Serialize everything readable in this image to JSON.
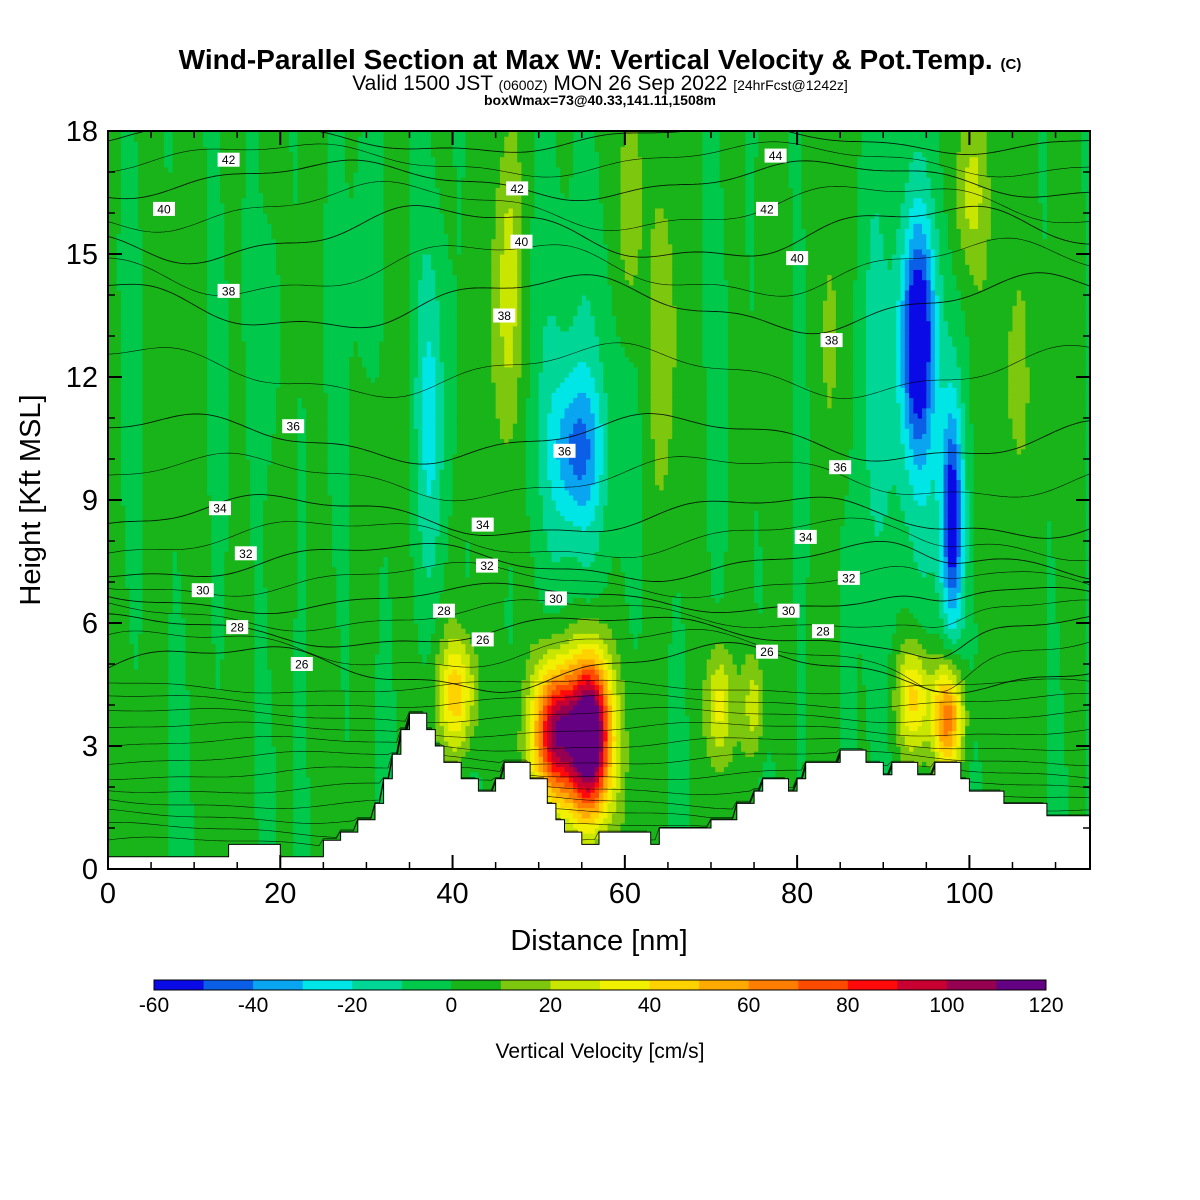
{
  "header": {
    "title_main": "Wind-Parallel Section at Max W: Vertical Velocity & Pot.Temp.",
    "title_suffix": "(C)",
    "valid_a": "Valid 1500 JST",
    "valid_b": "(0600Z)",
    "valid_c": "MON 26 Sep 2022",
    "valid_d": "[24hrFcst@1242z]",
    "box_info": "boxWmax=73@40.33,141.11,1508m"
  },
  "chart_data": {
    "type": "heatmap",
    "xlabel": "Distance [nm]",
    "ylabel": "Height [Kft MSL]",
    "xlim": [
      0,
      114
    ],
    "ylim": [
      0,
      18
    ],
    "x_ticks": [
      "0",
      "20",
      "40",
      "60",
      "80",
      "100"
    ],
    "y_ticks": [
      "0",
      "3",
      "6",
      "9",
      "12",
      "15",
      "18"
    ],
    "colorbar": {
      "title": "Vertical Velocity [cm/s]",
      "tick_labels": [
        "-60",
        "-40",
        "-20",
        "0",
        "20",
        "40",
        "60",
        "80",
        "100",
        "120"
      ],
      "levels": [
        -60,
        -50,
        -40,
        -30,
        -20,
        -10,
        0,
        10,
        20,
        30,
        40,
        50,
        60,
        70,
        80,
        90,
        100,
        110,
        120
      ],
      "colors": [
        "#0a0ae6",
        "#0a5fe6",
        "#0aa5f0",
        "#00e6e6",
        "#00d796",
        "#00c84b",
        "#19b419",
        "#7dc80f",
        "#c8e600",
        "#f0f000",
        "#ffd200",
        "#ffaa00",
        "#ff7d00",
        "#ff4b00",
        "#ff0a0a",
        "#c80032",
        "#960050",
        "#640082"
      ]
    },
    "terrain_profile": [
      [
        0,
        0.3
      ],
      [
        14,
        0.3
      ],
      [
        14,
        0.6
      ],
      [
        20,
        0.6
      ],
      [
        20,
        0.3
      ],
      [
        25,
        0.3
      ],
      [
        25,
        0.7
      ],
      [
        27,
        0.7
      ],
      [
        27,
        0.9
      ],
      [
        29,
        0.9
      ],
      [
        29,
        1.2
      ],
      [
        31,
        1.2
      ],
      [
        31,
        1.6
      ],
      [
        32,
        1.6
      ],
      [
        32,
        2.2
      ],
      [
        33,
        2.2
      ],
      [
        33,
        2.8
      ],
      [
        34,
        2.8
      ],
      [
        34,
        3.4
      ],
      [
        35,
        3.4
      ],
      [
        35,
        3.8
      ],
      [
        37,
        3.8
      ],
      [
        37,
        3.4
      ],
      [
        38,
        3.4
      ],
      [
        38,
        3.0
      ],
      [
        39,
        3.0
      ],
      [
        39,
        2.6
      ],
      [
        41,
        2.6
      ],
      [
        41,
        2.2
      ],
      [
        43,
        2.2
      ],
      [
        43,
        1.9
      ],
      [
        45,
        1.9
      ],
      [
        45,
        2.2
      ],
      [
        46,
        2.2
      ],
      [
        46,
        2.6
      ],
      [
        49,
        2.6
      ],
      [
        49,
        2.2
      ],
      [
        51,
        2.2
      ],
      [
        51,
        1.6
      ],
      [
        52,
        1.6
      ],
      [
        52,
        1.2
      ],
      [
        53,
        1.2
      ],
      [
        53,
        0.9
      ],
      [
        55,
        0.9
      ],
      [
        55,
        0.6
      ],
      [
        57,
        0.6
      ],
      [
        57,
        0.9
      ],
      [
        63,
        0.9
      ],
      [
        63,
        0.6
      ],
      [
        64,
        0.6
      ],
      [
        64,
        1.0
      ],
      [
        70,
        1.0
      ],
      [
        70,
        1.2
      ],
      [
        73,
        1.2
      ],
      [
        73,
        1.6
      ],
      [
        75,
        1.6
      ],
      [
        75,
        1.9
      ],
      [
        76,
        1.9
      ],
      [
        76,
        2.2
      ],
      [
        79,
        2.2
      ],
      [
        79,
        1.9
      ],
      [
        80,
        1.9
      ],
      [
        80,
        2.2
      ],
      [
        81,
        2.2
      ],
      [
        81,
        2.6
      ],
      [
        85,
        2.6
      ],
      [
        85,
        2.9
      ],
      [
        88,
        2.9
      ],
      [
        88,
        2.6
      ],
      [
        90,
        2.6
      ],
      [
        90,
        2.3
      ],
      [
        91,
        2.3
      ],
      [
        91,
        2.6
      ],
      [
        94,
        2.6
      ],
      [
        94,
        2.3
      ],
      [
        96,
        2.3
      ],
      [
        96,
        2.6
      ],
      [
        99,
        2.6
      ],
      [
        99,
        2.2
      ],
      [
        100,
        2.2
      ],
      [
        100,
        1.9
      ],
      [
        104,
        1.9
      ],
      [
        104,
        1.6
      ],
      [
        109,
        1.6
      ],
      [
        109,
        1.3
      ],
      [
        114,
        1.3
      ]
    ],
    "w_features": [
      {
        "x": 56,
        "z": 3.3,
        "sx": 2.2,
        "sz": 1.9,
        "w": 120
      },
      {
        "x": 52,
        "z": 3.4,
        "sx": 2.4,
        "sz": 1.6,
        "w": 85
      },
      {
        "x": 54,
        "z": 3.0,
        "sx": 4.5,
        "sz": 2.0,
        "w": 30
      },
      {
        "x": 97.5,
        "z": 3.7,
        "sx": 1.8,
        "sz": 1.3,
        "w": 65
      },
      {
        "x": 93.5,
        "z": 4.2,
        "sx": 2.0,
        "sz": 1.3,
        "w": 40
      },
      {
        "x": 40.5,
        "z": 4.3,
        "sx": 2.2,
        "sz": 1.4,
        "w": 45
      },
      {
        "x": 71,
        "z": 4.0,
        "sx": 1.5,
        "sz": 1.4,
        "w": 32
      },
      {
        "x": 75,
        "z": 4.0,
        "sx": 1.3,
        "sz": 1.3,
        "w": 25
      },
      {
        "x": 98,
        "z": 8.5,
        "sx": 1.3,
        "sz": 2.8,
        "w": -60
      },
      {
        "x": 94,
        "z": 13.0,
        "sx": 1.8,
        "sz": 2.5,
        "w": -48
      },
      {
        "x": 94,
        "z": 12.0,
        "sx": 4.0,
        "sz": 5.0,
        "w": -22
      },
      {
        "x": 54.5,
        "z": 10.2,
        "sx": 3.0,
        "sz": 1.8,
        "w": -32
      },
      {
        "x": 54,
        "z": 11.0,
        "sx": 4.0,
        "sz": 5.0,
        "w": -18
      },
      {
        "x": 37.5,
        "z": 11.0,
        "sx": 1.8,
        "sz": 4.0,
        "w": -22
      },
      {
        "x": 46.5,
        "z": 14.0,
        "sx": 1.6,
        "sz": 4.0,
        "w": 28
      },
      {
        "x": 88.5,
        "z": 12.0,
        "sx": 1.8,
        "sz": 6.0,
        "w": -15
      },
      {
        "x": 64.5,
        "z": 13.0,
        "sx": 1.6,
        "sz": 4.0,
        "w": 15
      },
      {
        "x": 105,
        "z": 12.0,
        "sx": 2.5,
        "sz": 4.0,
        "w": 14
      },
      {
        "x": 30,
        "z": 15.0,
        "sx": 1.5,
        "sz": 3.0,
        "w": -13
      },
      {
        "x": 19,
        "z": 13.0,
        "sx": 1.2,
        "sz": 3.0,
        "w": -12
      },
      {
        "x": 100,
        "z": 16.5,
        "sx": 2.0,
        "sz": 2.0,
        "w": 22
      },
      {
        "x": 60.5,
        "z": 16.0,
        "sx": 1.5,
        "sz": 3.0,
        "w": 20
      },
      {
        "x": 84,
        "z": 13.0,
        "sx": 1.5,
        "sz": 4.0,
        "w": 14
      }
    ],
    "theta_contours": [
      {
        "level": 26,
        "base_z": 4.9,
        "wave": 0.5
      },
      {
        "level": 28,
        "base_z": 5.8,
        "wave": 0.35
      },
      {
        "level": 30,
        "base_z": 6.6,
        "wave": 0.3
      },
      {
        "level": 32,
        "base_z": 7.5,
        "wave": 0.4
      },
      {
        "level": 34,
        "base_z": 8.6,
        "wave": 0.45
      },
      {
        "level": 36,
        "base_z": 10.5,
        "wave": 0.5
      },
      {
        "level": 38,
        "base_z": 13.8,
        "wave": 0.6
      },
      {
        "level": 40,
        "base_z": 15.5,
        "wave": 0.6
      },
      {
        "level": 42,
        "base_z": 16.8,
        "wave": 0.4
      },
      {
        "level": 44,
        "base_z": 17.8,
        "wave": 0.3
      }
    ],
    "contour_labels": [
      {
        "text": "42",
        "x": 14,
        "z": 17.3
      },
      {
        "text": "40",
        "x": 6.5,
        "z": 16.1
      },
      {
        "text": "38",
        "x": 14,
        "z": 14.1
      },
      {
        "text": "36",
        "x": 21.5,
        "z": 10.8
      },
      {
        "text": "34",
        "x": 13,
        "z": 8.8
      },
      {
        "text": "32",
        "x": 16,
        "z": 7.7
      },
      {
        "text": "30",
        "x": 11,
        "z": 6.8
      },
      {
        "text": "28",
        "x": 15,
        "z": 5.9
      },
      {
        "text": "26",
        "x": 22.5,
        "z": 5.0
      },
      {
        "text": "42",
        "x": 47.5,
        "z": 16.6
      },
      {
        "text": "40",
        "x": 48,
        "z": 15.3
      },
      {
        "text": "38",
        "x": 46,
        "z": 13.5
      },
      {
        "text": "36",
        "x": 53,
        "z": 10.2
      },
      {
        "text": "34",
        "x": 43.5,
        "z": 8.4
      },
      {
        "text": "32",
        "x": 44,
        "z": 7.4
      },
      {
        "text": "30",
        "x": 52,
        "z": 6.6
      },
      {
        "text": "28",
        "x": 39,
        "z": 6.3
      },
      {
        "text": "26",
        "x": 43.5,
        "z": 5.6
      },
      {
        "text": "44",
        "x": 77.5,
        "z": 17.4
      },
      {
        "text": "42",
        "x": 76.5,
        "z": 16.1
      },
      {
        "text": "40",
        "x": 80,
        "z": 14.9
      },
      {
        "text": "38",
        "x": 84,
        "z": 12.9
      },
      {
        "text": "36",
        "x": 85,
        "z": 9.8
      },
      {
        "text": "34",
        "x": 81,
        "z": 8.1
      },
      {
        "text": "32",
        "x": 86,
        "z": 7.1
      },
      {
        "text": "30",
        "x": 79,
        "z": 6.3
      },
      {
        "text": "28",
        "x": 83,
        "z": 5.8
      },
      {
        "text": "26",
        "x": 76.5,
        "z": 5.3
      }
    ]
  }
}
